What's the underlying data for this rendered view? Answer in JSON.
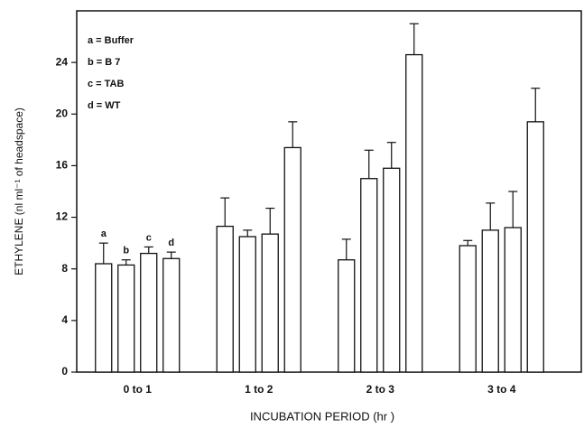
{
  "chart_data": {
    "type": "bar",
    "categories": [
      "0 to 1",
      "1 to 2",
      "2 to 3",
      "3 to 4"
    ],
    "bar_labels": [
      "a",
      "b",
      "c",
      "d"
    ],
    "series": [
      {
        "name": "a = Buffer",
        "color": "#ffffff",
        "values": [
          8.4,
          11.3,
          8.7,
          9.8
        ],
        "errors": [
          1.6,
          2.2,
          1.6,
          0.4
        ]
      },
      {
        "name": "b = B 7",
        "color": "#ffffff",
        "values": [
          8.3,
          10.5,
          15.0,
          11.0
        ],
        "errors": [
          0.4,
          0.5,
          2.2,
          2.1
        ]
      },
      {
        "name": "c = TAB",
        "color": "#ffffff",
        "values": [
          9.2,
          10.7,
          15.8,
          11.2
        ],
        "errors": [
          0.5,
          2.0,
          2.0,
          2.8
        ]
      },
      {
        "name": "d = WT",
        "color": "#ffffff",
        "values": [
          8.8,
          17.4,
          24.6,
          19.4
        ],
        "errors": [
          0.5,
          2.0,
          2.4,
          2.6
        ]
      }
    ],
    "xlabel": "INCUBATION PERIOD (hr )",
    "ylabel": "ETHYLENE  (nl ml⁻¹ of headspace)",
    "ylim": [
      0,
      28
    ],
    "yticks": [
      0,
      4,
      8,
      12,
      16,
      20,
      24
    ],
    "grid": false
  }
}
